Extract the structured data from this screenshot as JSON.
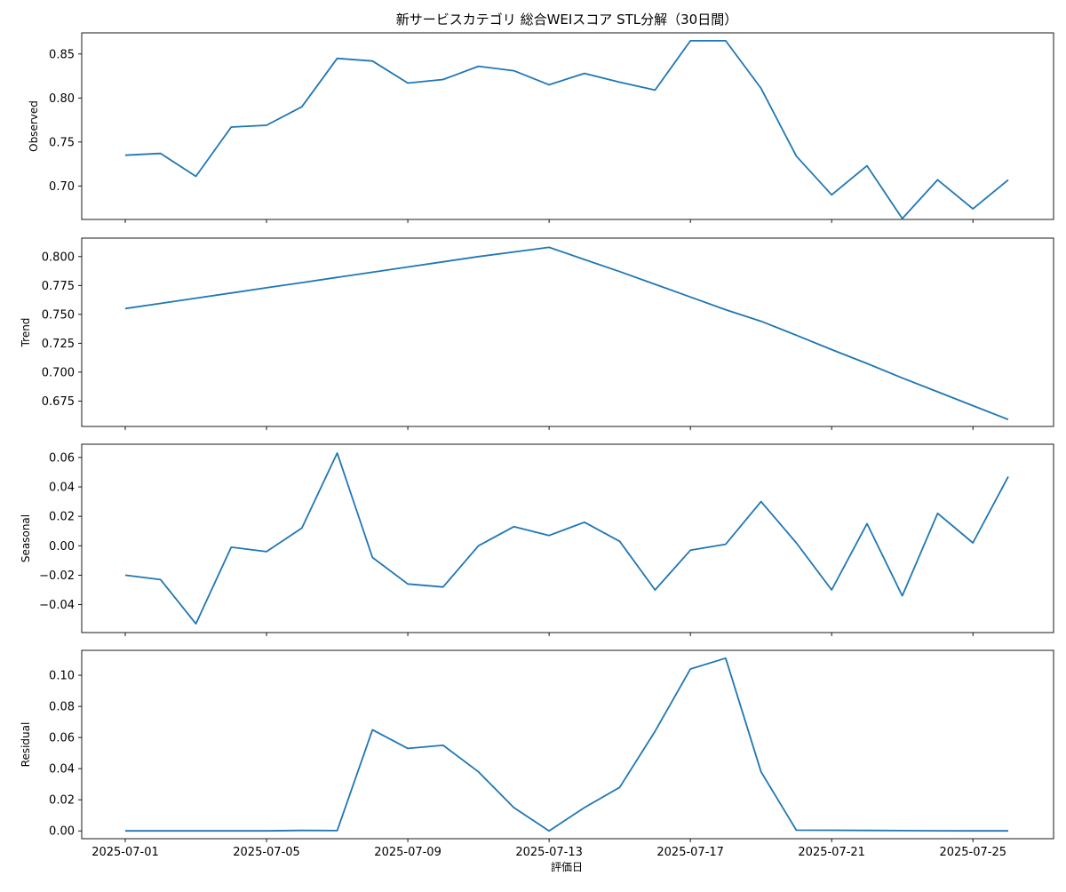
{
  "chart_data": {
    "type": "line",
    "title": "新サービスカテゴリ 総合WEIスコア STL分解（30日間）",
    "xlabel": "評価日",
    "x": [
      "2025-07-01",
      "2025-07-02",
      "2025-07-03",
      "2025-07-04",
      "2025-07-05",
      "2025-07-06",
      "2025-07-07",
      "2025-07-08",
      "2025-07-09",
      "2025-07-10",
      "2025-07-11",
      "2025-07-12",
      "2025-07-13",
      "2025-07-14",
      "2025-07-15",
      "2025-07-16",
      "2025-07-17",
      "2025-07-18",
      "2025-07-19",
      "2025-07-20",
      "2025-07-21",
      "2025-07-22",
      "2025-07-23",
      "2025-07-24",
      "2025-07-25",
      "2025-07-26"
    ],
    "x_ticks": [
      "2025-07-01",
      "2025-07-05",
      "2025-07-09",
      "2025-07-13",
      "2025-07-17",
      "2025-07-21",
      "2025-07-25"
    ],
    "line_color": "#1f77b4",
    "grid": false,
    "panels": [
      {
        "ylabel": "Observed",
        "ylim": [
          0.662,
          0.874
        ],
        "yticks": [
          "0.70",
          "0.75",
          "0.80",
          "0.85"
        ],
        "ytick_values": [
          0.7,
          0.75,
          0.8,
          0.85
        ],
        "values": [
          0.735,
          0.737,
          0.711,
          0.767,
          0.769,
          0.79,
          0.845,
          0.842,
          0.817,
          0.821,
          0.836,
          0.831,
          0.815,
          0.828,
          0.818,
          0.809,
          0.865,
          0.865,
          0.811,
          0.734,
          0.69,
          0.723,
          0.663,
          0.707,
          0.674,
          0.707
        ]
      },
      {
        "ylabel": "Trend",
        "ylim": [
          0.653,
          0.816
        ],
        "yticks": [
          "0.675",
          "0.700",
          "0.725",
          "0.750",
          "0.775",
          "0.800"
        ],
        "ytick_values": [
          0.675,
          0.7,
          0.725,
          0.75,
          0.775,
          0.8
        ],
        "values": [
          0.755,
          0.7595,
          0.764,
          0.7685,
          0.773,
          0.7775,
          0.782,
          0.7865,
          0.791,
          0.7955,
          0.8,
          0.804,
          0.808,
          0.7975,
          0.787,
          0.776,
          0.765,
          0.754,
          0.744,
          0.732,
          0.7195,
          0.7075,
          0.695,
          0.683,
          0.671,
          0.659
        ]
      },
      {
        "ylabel": "Seasonal",
        "ylim": [
          -0.059,
          0.069
        ],
        "yticks": [
          "−0.04",
          "−0.02",
          "0.00",
          "0.02",
          "0.04",
          "0.06"
        ],
        "ytick_values": [
          -0.04,
          -0.02,
          0.0,
          0.02,
          0.04,
          0.06
        ],
        "values": [
          -0.02,
          -0.023,
          -0.053,
          -0.001,
          -0.004,
          0.012,
          0.063,
          -0.008,
          -0.026,
          -0.028,
          0.0,
          0.013,
          0.007,
          0.016,
          0.003,
          -0.03,
          -0.003,
          0.001,
          0.03,
          0.002,
          -0.03,
          0.015,
          -0.034,
          0.022,
          0.002,
          0.047
        ]
      },
      {
        "ylabel": "Residual",
        "ylim": [
          -0.005,
          0.116
        ],
        "yticks": [
          "0.00",
          "0.02",
          "0.04",
          "0.06",
          "0.08",
          "0.10"
        ],
        "ytick_values": [
          0.0,
          0.02,
          0.04,
          0.06,
          0.08,
          0.1
        ],
        "values": [
          0.0,
          0.0,
          0.0,
          0.0,
          0.0,
          0.0003,
          0.0002,
          0.065,
          0.053,
          0.055,
          0.038,
          0.015,
          0.0,
          0.015,
          0.028,
          0.064,
          0.104,
          0.111,
          0.038,
          0.0005,
          0.0004,
          0.0003,
          0.0002,
          0.0001,
          0.0,
          0.0
        ]
      }
    ]
  }
}
